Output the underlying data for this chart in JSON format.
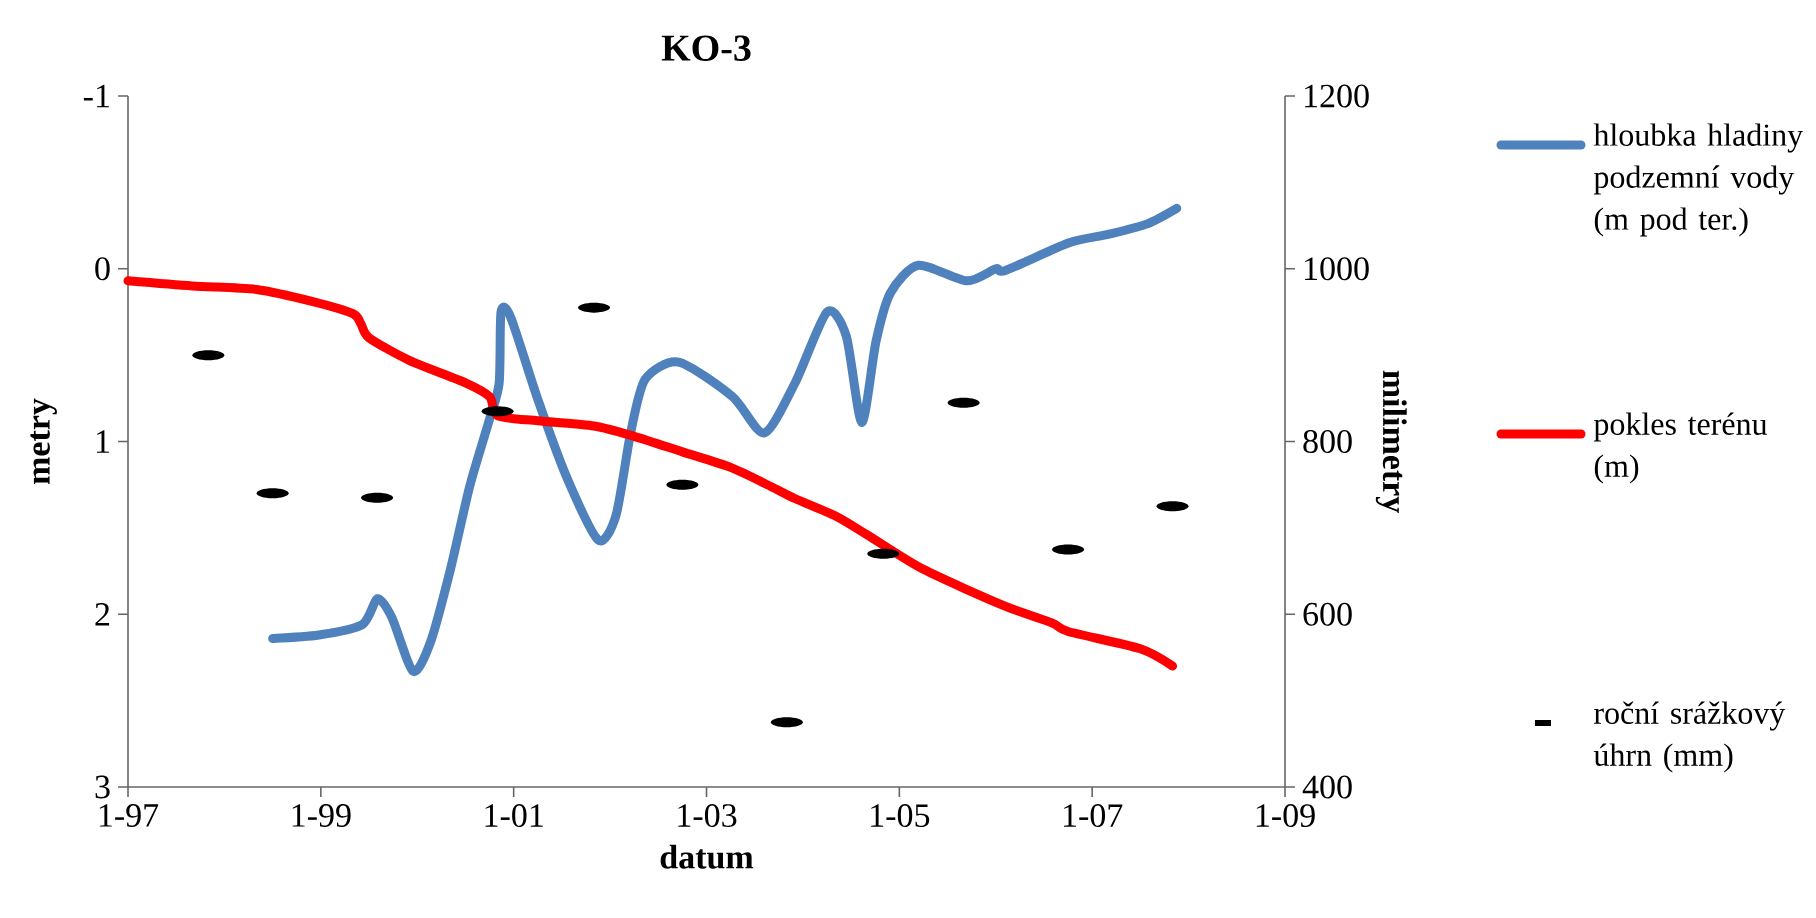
{
  "chart_data": {
    "type": "line",
    "title": "KO-3",
    "xlabel": "datum",
    "ylabel": "metry",
    "y2label": "milimetry",
    "xlim": [
      "1997-01",
      "2009-01"
    ],
    "xticks": [
      {
        "value": "1997-01",
        "label": "1-97"
      },
      {
        "value": "1999-01",
        "label": "1-99"
      },
      {
        "value": "2001-01",
        "label": "1-01"
      },
      {
        "value": "2003-01",
        "label": "1-03"
      },
      {
        "value": "2005-01",
        "label": "1-05"
      },
      {
        "value": "2007-01",
        "label": "1-07"
      },
      {
        "value": "2009-01",
        "label": "1-09"
      }
    ],
    "ylim": [
      3,
      -1
    ],
    "yticks": [
      -1,
      0,
      1,
      2,
      3
    ],
    "y2lim": [
      400,
      1200
    ],
    "y2ticks": [
      400,
      600,
      800,
      1000,
      1200
    ],
    "legend": "right",
    "grid": false,
    "series": [
      {
        "name": "hloubka hladiny podzemní vody (m pod ter.)",
        "color": "#4f81bd",
        "x": [
          "1998-07-01",
          "1998-12-24",
          "1999-06-06",
          "1999-08-03",
          "1999-09-27",
          "1999-12-16",
          "2000-02-21",
          "2000-05-05",
          "2000-07-17",
          "2000-10-01",
          "2000-11-07",
          "2000-11-14",
          "2000-12-20",
          "2001-04-02",
          "2001-07-20",
          "2001-11-17",
          "2002-01-23",
          "2002-03-18",
          "2002-05-12",
          "2002-09-17",
          "2003-04-08",
          "2003-08-07",
          "2003-12-02",
          "2004-04-01",
          "2004-06-13",
          "2004-08-11",
          "2004-10-04",
          "2004-11-28",
          "2005-03-12",
          "2005-09-13",
          "2006-01-01",
          "2006-02-07",
          "2006-10-05",
          "2007-03-04",
          "2007-07-27",
          "2007-11-17"
        ],
        "values": [
          2.14,
          2.12,
          2.06,
          1.91,
          2.02,
          2.33,
          2.16,
          1.74,
          1.26,
          0.87,
          0.66,
          0.25,
          0.28,
          0.76,
          1.21,
          1.57,
          1.43,
          0.95,
          0.64,
          0.54,
          0.74,
          0.95,
          0.66,
          0.25,
          0.39,
          0.89,
          0.42,
          0.14,
          -0.02,
          0.07,
          0.0,
          0.01,
          -0.15,
          -0.2,
          -0.26,
          -0.35
        ]
      },
      {
        "name": "pokles terénu (m)",
        "color": "#ff0000",
        "x": [
          "1997-01",
          "1997-09",
          "1998-05",
          "1998-12",
          "1999-05",
          "1999-06",
          "1999-07",
          "1999-12",
          "2000-07",
          "2000-10",
          "2000-11",
          "2001-04",
          "2001-11",
          "2002-04",
          "2002-10",
          "2003-04",
          "2003-09",
          "2003-12",
          "2004-05",
          "2004-09",
          "2005-04",
          "2006-02",
          "2006-08",
          "2006-10",
          "2007-07",
          "2007-11"
        ],
        "values": [
          0.07,
          0.1,
          0.12,
          0.19,
          0.26,
          0.32,
          0.4,
          0.53,
          0.66,
          0.74,
          0.85,
          0.88,
          0.91,
          0.97,
          1.06,
          1.15,
          1.26,
          1.33,
          1.43,
          1.54,
          1.74,
          1.95,
          2.05,
          2.1,
          2.2,
          2.3
        ]
      },
      {
        "name": "roční srážkový úhrn (mm)",
        "type": "scatter",
        "axis": "y2",
        "color": "#000000",
        "x": [
          "1997-11",
          "1998-07",
          "1999-08",
          "2000-11",
          "2001-11",
          "2002-10",
          "2003-11",
          "2004-11",
          "2005-09",
          "2006-10",
          "2007-11"
        ],
        "values": [
          900,
          740,
          735,
          835,
          955,
          750,
          475,
          670,
          845,
          675,
          725
        ]
      }
    ]
  }
}
